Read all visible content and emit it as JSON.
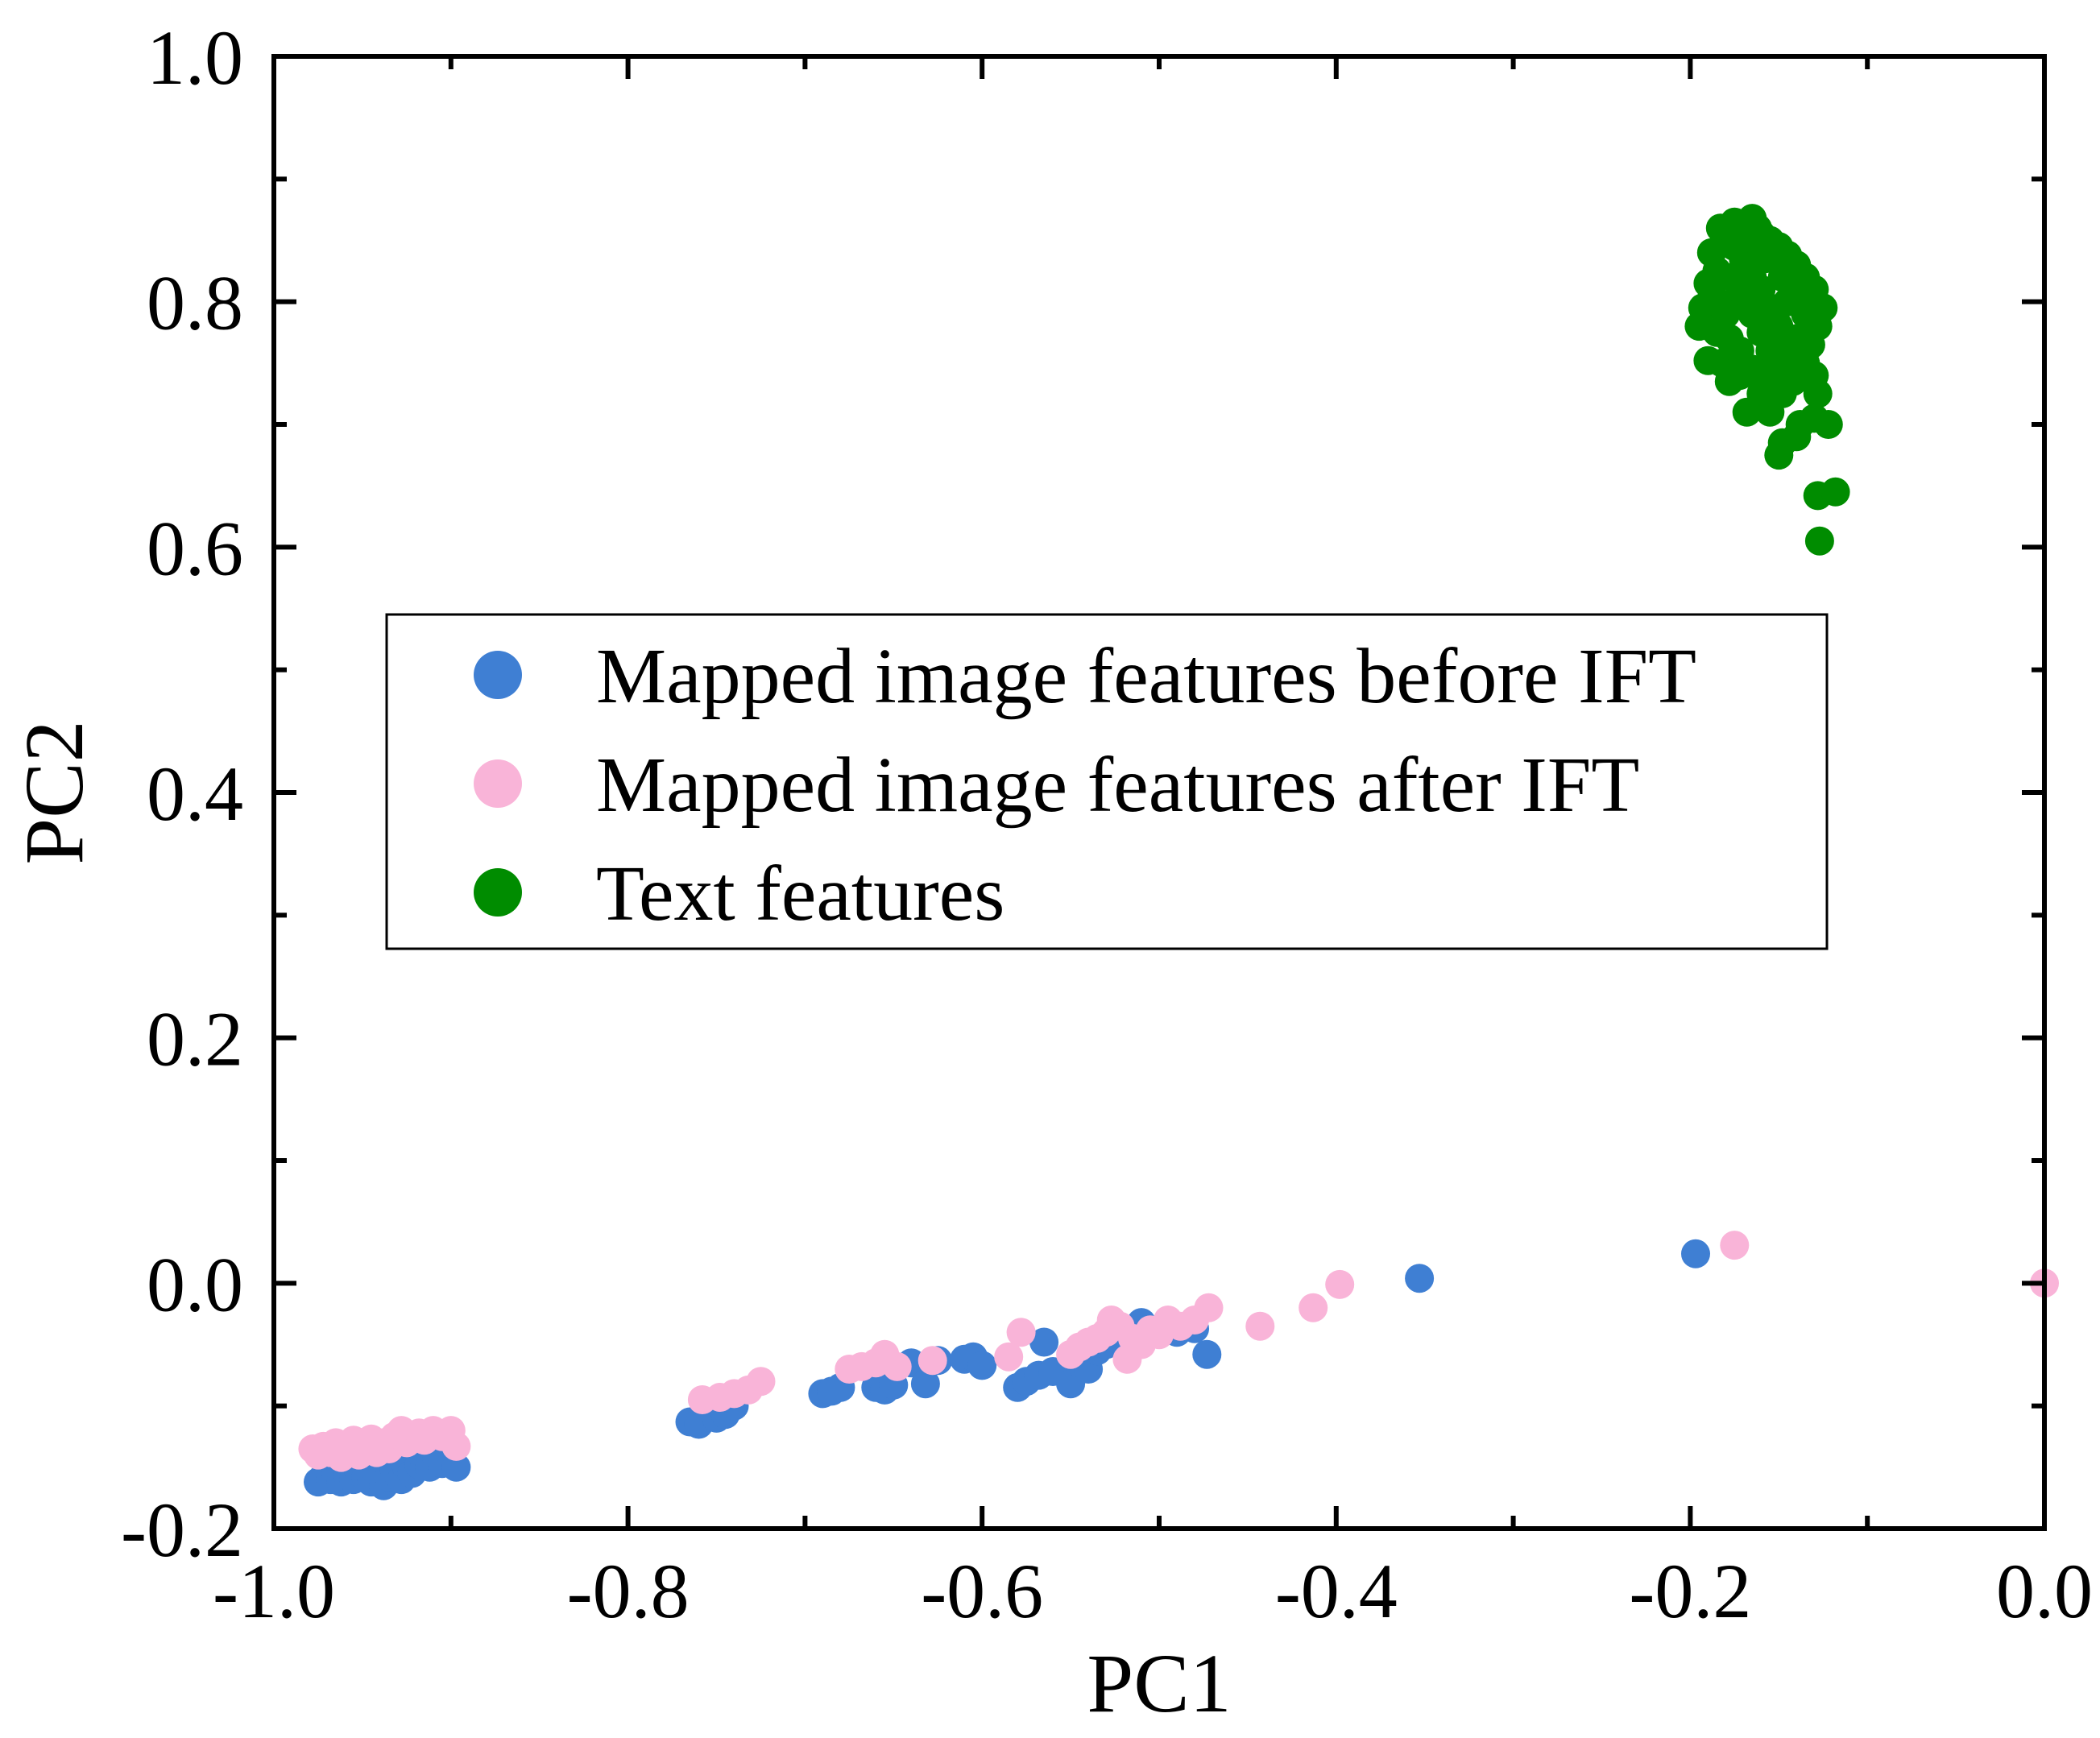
{
  "chart_data": {
    "type": "scatter",
    "title": "",
    "xlabel": "PC1",
    "ylabel": "PC2",
    "xlim": [
      -1.0,
      0.0
    ],
    "ylim": [
      -0.2,
      1.0
    ],
    "xticks": [
      "-1.0",
      "-0.8",
      "-0.6",
      "-0.4",
      "-0.2",
      "0.0"
    ],
    "yticks": [
      "-0.2",
      "0.0",
      "0.2",
      "0.4",
      "0.6",
      "0.8",
      "1.0"
    ],
    "grid": false,
    "legend_position": "center-left",
    "series": [
      {
        "name": "Mapped image features before IFT",
        "color": "#3F7FD3",
        "points": [
          [
            -0.975,
            -0.162
          ],
          [
            -0.972,
            -0.158
          ],
          [
            -0.968,
            -0.16
          ],
          [
            -0.965,
            -0.155
          ],
          [
            -0.962,
            -0.162
          ],
          [
            -0.958,
            -0.157
          ],
          [
            -0.955,
            -0.16
          ],
          [
            -0.952,
            -0.154
          ],
          [
            -0.948,
            -0.158
          ],
          [
            -0.945,
            -0.162
          ],
          [
            -0.942,
            -0.155
          ],
          [
            -0.938,
            -0.165
          ],
          [
            -0.935,
            -0.158
          ],
          [
            -0.932,
            -0.152
          ],
          [
            -0.928,
            -0.16
          ],
          [
            -0.925,
            -0.15
          ],
          [
            -0.922,
            -0.155
          ],
          [
            -0.918,
            -0.148
          ],
          [
            -0.915,
            -0.145
          ],
          [
            -0.912,
            -0.15
          ],
          [
            -0.908,
            -0.142
          ],
          [
            -0.905,
            -0.147
          ],
          [
            -0.9,
            -0.14
          ],
          [
            -0.897,
            -0.15
          ],
          [
            -0.765,
            -0.113
          ],
          [
            -0.76,
            -0.115
          ],
          [
            -0.75,
            -0.11
          ],
          [
            -0.745,
            -0.107
          ],
          [
            -0.74,
            -0.1
          ],
          [
            -0.69,
            -0.09
          ],
          [
            -0.685,
            -0.088
          ],
          [
            -0.68,
            -0.085
          ],
          [
            -0.66,
            -0.085
          ],
          [
            -0.655,
            -0.087
          ],
          [
            -0.65,
            -0.083
          ],
          [
            -0.64,
            -0.065
          ],
          [
            -0.632,
            -0.082
          ],
          [
            -0.625,
            -0.063
          ],
          [
            -0.61,
            -0.062
          ],
          [
            -0.605,
            -0.06
          ],
          [
            -0.6,
            -0.067
          ],
          [
            -0.58,
            -0.085
          ],
          [
            -0.575,
            -0.08
          ],
          [
            -0.568,
            -0.075
          ],
          [
            -0.565,
            -0.048
          ],
          [
            -0.56,
            -0.072
          ],
          [
            -0.55,
            -0.082
          ],
          [
            -0.545,
            -0.065
          ],
          [
            -0.54,
            -0.07
          ],
          [
            -0.535,
            -0.055
          ],
          [
            -0.53,
            -0.05
          ],
          [
            -0.525,
            -0.045
          ],
          [
            -0.52,
            -0.042
          ],
          [
            -0.515,
            -0.038
          ],
          [
            -0.51,
            -0.032
          ],
          [
            -0.49,
            -0.04
          ],
          [
            -0.48,
            -0.037
          ],
          [
            -0.473,
            -0.058
          ],
          [
            -0.353,
            0.004
          ],
          [
            -0.197,
            0.024
          ]
        ]
      },
      {
        "name": "Mapped image features after IFT",
        "color": "#F9B4D8",
        "points": [
          [
            -0.978,
            -0.135
          ],
          [
            -0.975,
            -0.14
          ],
          [
            -0.972,
            -0.133
          ],
          [
            -0.968,
            -0.138
          ],
          [
            -0.965,
            -0.13
          ],
          [
            -0.962,
            -0.142
          ],
          [
            -0.958,
            -0.135
          ],
          [
            -0.955,
            -0.128
          ],
          [
            -0.952,
            -0.14
          ],
          [
            -0.948,
            -0.133
          ],
          [
            -0.945,
            -0.127
          ],
          [
            -0.942,
            -0.138
          ],
          [
            -0.938,
            -0.13
          ],
          [
            -0.935,
            -0.135
          ],
          [
            -0.932,
            -0.125
          ],
          [
            -0.928,
            -0.12
          ],
          [
            -0.925,
            -0.13
          ],
          [
            -0.922,
            -0.125
          ],
          [
            -0.918,
            -0.122
          ],
          [
            -0.915,
            -0.128
          ],
          [
            -0.91,
            -0.12
          ],
          [
            -0.905,
            -0.125
          ],
          [
            -0.9,
            -0.12
          ],
          [
            -0.897,
            -0.133
          ],
          [
            -0.758,
            -0.095
          ],
          [
            -0.748,
            -0.093
          ],
          [
            -0.74,
            -0.09
          ],
          [
            -0.732,
            -0.087
          ],
          [
            -0.725,
            -0.08
          ],
          [
            -0.675,
            -0.07
          ],
          [
            -0.668,
            -0.068
          ],
          [
            -0.66,
            -0.065
          ],
          [
            -0.655,
            -0.058
          ],
          [
            -0.648,
            -0.068
          ],
          [
            -0.628,
            -0.063
          ],
          [
            -0.585,
            -0.06
          ],
          [
            -0.578,
            -0.04
          ],
          [
            -0.55,
            -0.058
          ],
          [
            -0.545,
            -0.052
          ],
          [
            -0.54,
            -0.048
          ],
          [
            -0.535,
            -0.045
          ],
          [
            -0.53,
            -0.04
          ],
          [
            -0.527,
            -0.03
          ],
          [
            -0.522,
            -0.035
          ],
          [
            -0.518,
            -0.062
          ],
          [
            -0.515,
            -0.045
          ],
          [
            -0.51,
            -0.05
          ],
          [
            -0.505,
            -0.038
          ],
          [
            -0.5,
            -0.042
          ],
          [
            -0.495,
            -0.03
          ],
          [
            -0.488,
            -0.035
          ],
          [
            -0.48,
            -0.03
          ],
          [
            -0.472,
            -0.02
          ],
          [
            -0.443,
            -0.035
          ],
          [
            -0.413,
            -0.02
          ],
          [
            -0.398,
            -0.001
          ],
          [
            -0.175,
            0.031
          ],
          [
            0.0,
            0.0
          ]
        ]
      },
      {
        "name": "Text features",
        "color": "#008C00",
        "points": [
          [
            -0.18,
            0.85
          ],
          [
            -0.175,
            0.865
          ],
          [
            -0.17,
            0.86
          ],
          [
            -0.165,
            0.868
          ],
          [
            -0.16,
            0.855
          ],
          [
            -0.155,
            0.85
          ],
          [
            -0.15,
            0.845
          ],
          [
            -0.145,
            0.838
          ],
          [
            -0.14,
            0.83
          ],
          [
            -0.135,
            0.82
          ],
          [
            -0.13,
            0.81
          ],
          [
            -0.125,
            0.795
          ],
          [
            -0.128,
            0.78
          ],
          [
            -0.132,
            0.765
          ],
          [
            -0.135,
            0.75
          ],
          [
            -0.13,
            0.74
          ],
          [
            -0.128,
            0.725
          ],
          [
            -0.122,
            0.7
          ],
          [
            -0.13,
            0.705
          ],
          [
            -0.138,
            0.7
          ],
          [
            -0.14,
            0.69
          ],
          [
            -0.148,
            0.685
          ],
          [
            -0.15,
            0.675
          ],
          [
            -0.155,
            0.71
          ],
          [
            -0.16,
            0.725
          ],
          [
            -0.168,
            0.71
          ],
          [
            -0.172,
            0.74
          ],
          [
            -0.178,
            0.735
          ],
          [
            -0.182,
            0.75
          ],
          [
            -0.19,
            0.752
          ],
          [
            -0.195,
            0.78
          ],
          [
            -0.193,
            0.795
          ],
          [
            -0.188,
            0.81
          ],
          [
            -0.185,
            0.825
          ],
          [
            -0.188,
            0.84
          ],
          [
            -0.183,
            0.86
          ],
          [
            -0.176,
            0.82
          ],
          [
            -0.17,
            0.8
          ],
          [
            -0.165,
            0.79
          ],
          [
            -0.16,
            0.81
          ],
          [
            -0.155,
            0.795
          ],
          [
            -0.15,
            0.78
          ],
          [
            -0.145,
            0.8
          ],
          [
            -0.14,
            0.77
          ],
          [
            -0.145,
            0.76
          ],
          [
            -0.15,
            0.745
          ],
          [
            -0.155,
            0.76
          ],
          [
            -0.16,
            0.775
          ],
          [
            -0.165,
            0.82
          ],
          [
            -0.17,
            0.835
          ],
          [
            -0.175,
            0.8
          ],
          [
            -0.18,
            0.79
          ],
          [
            -0.185,
            0.775
          ],
          [
            -0.178,
            0.77
          ],
          [
            -0.172,
            0.76
          ],
          [
            -0.165,
            0.745
          ],
          [
            -0.16,
            0.74
          ],
          [
            -0.155,
            0.73
          ],
          [
            -0.148,
            0.725
          ],
          [
            -0.142,
            0.735
          ],
          [
            -0.138,
            0.755
          ],
          [
            -0.135,
            0.79
          ],
          [
            -0.14,
            0.805
          ],
          [
            -0.148,
            0.82
          ],
          [
            -0.158,
            0.835
          ],
          [
            -0.168,
            0.85
          ],
          [
            -0.175,
            0.845
          ],
          [
            -0.185,
            0.8
          ],
          [
            -0.19,
            0.815
          ],
          [
            -0.162,
            0.86
          ],
          [
            -0.128,
            0.642
          ],
          [
            -0.118,
            0.645
          ],
          [
            -0.127,
            0.605
          ]
        ]
      }
    ]
  }
}
